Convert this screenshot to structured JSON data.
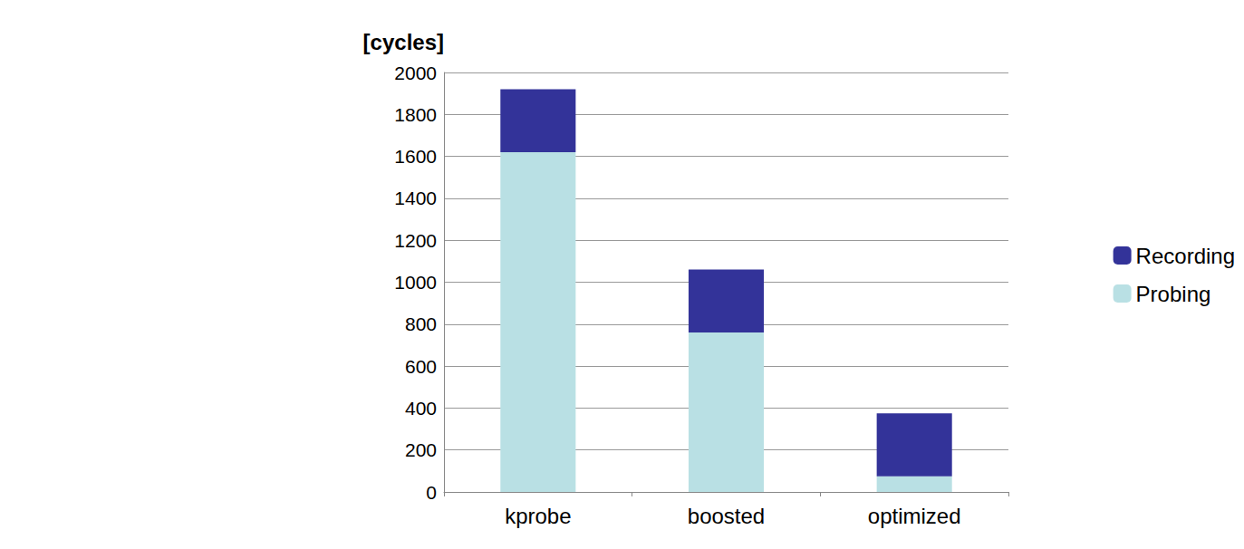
{
  "chart_data": {
    "type": "bar",
    "stacked": true,
    "y_label": "[cycles]",
    "categories": [
      "kprobe",
      "boosted",
      "optimized"
    ],
    "series": [
      {
        "name": "Probing",
        "color": "#b9e0e4",
        "values": [
          1620,
          760,
          75
        ]
      },
      {
        "name": "Recording",
        "color": "#333399",
        "values": [
          300,
          300,
          300
        ]
      }
    ],
    "ylim": [
      0,
      2000
    ],
    "yticks": [
      0,
      200,
      400,
      600,
      800,
      1000,
      1200,
      1400,
      1600,
      1800,
      2000
    ],
    "grid": true,
    "legend": "right"
  }
}
